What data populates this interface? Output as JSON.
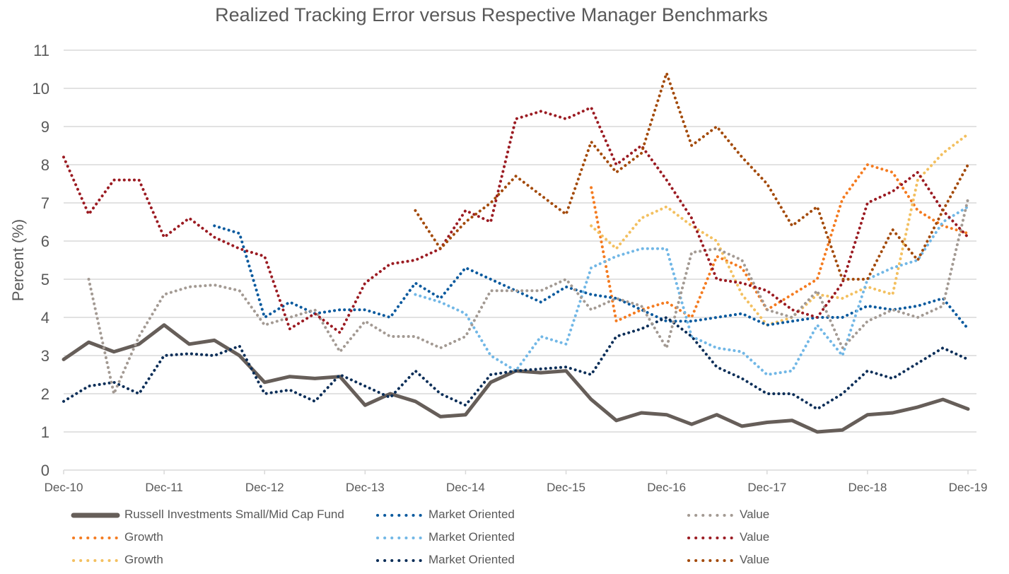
{
  "chart_data": {
    "type": "line",
    "title": "Realized Tracking Error versus Respective Manager Benchmarks",
    "xlabel": "",
    "ylabel": "Percent (%)",
    "ylim": [
      0,
      11
    ],
    "yticks": [
      0,
      1,
      2,
      3,
      4,
      5,
      6,
      7,
      8,
      9,
      10,
      11
    ],
    "x_tick_labels": [
      "Dec-10",
      "Dec-11",
      "Dec-12",
      "Dec-13",
      "Dec-14",
      "Dec-15",
      "Dec-16",
      "Dec-17",
      "Dec-18",
      "Dec-19"
    ],
    "x_resolution": "quarterly",
    "x": [
      "Dec-10",
      "Mar-11",
      "Jun-11",
      "Sep-11",
      "Dec-11",
      "Mar-12",
      "Jun-12",
      "Sep-12",
      "Dec-12",
      "Mar-13",
      "Jun-13",
      "Sep-13",
      "Dec-13",
      "Mar-14",
      "Jun-14",
      "Sep-14",
      "Dec-14",
      "Mar-15",
      "Jun-15",
      "Sep-15",
      "Dec-15",
      "Mar-16",
      "Jun-16",
      "Sep-16",
      "Dec-16",
      "Mar-17",
      "Jun-17",
      "Sep-17",
      "Dec-17",
      "Mar-18",
      "Jun-18",
      "Sep-18",
      "Dec-18",
      "Mar-19",
      "Jun-19",
      "Sep-19",
      "Dec-19"
    ],
    "grid": true,
    "legend_position": "bottom",
    "series": [
      {
        "name": "Russell Investments Small/Mid Cap Fund",
        "color": "#665e59",
        "style": "solid",
        "values": [
          2.9,
          3.35,
          3.1,
          3.3,
          3.8,
          3.3,
          3.4,
          3.0,
          2.3,
          2.45,
          2.4,
          2.45,
          1.7,
          2.0,
          1.8,
          1.4,
          1.45,
          2.3,
          2.6,
          2.55,
          2.6,
          1.85,
          1.3,
          1.5,
          1.45,
          1.2,
          1.45,
          1.15,
          1.25,
          1.3,
          1.0,
          1.05,
          1.45,
          1.5,
          1.65,
          1.85,
          1.6
        ]
      },
      {
        "name": "Growth",
        "color": "#f47b20",
        "style": "dotted",
        "values": [
          null,
          null,
          null,
          null,
          null,
          null,
          null,
          null,
          null,
          null,
          null,
          null,
          null,
          null,
          null,
          null,
          null,
          null,
          null,
          null,
          null,
          7.4,
          3.9,
          4.2,
          4.4,
          4.0,
          5.6,
          5.3,
          4.2,
          4.6,
          5.0,
          7.1,
          8.0,
          7.8,
          6.8,
          6.4,
          6.2
        ]
      },
      {
        "name": "Growth",
        "color": "#f3c060",
        "style": "dotted",
        "values": [
          null,
          null,
          null,
          null,
          null,
          null,
          null,
          null,
          null,
          null,
          null,
          null,
          null,
          null,
          null,
          null,
          null,
          null,
          null,
          null,
          null,
          6.4,
          5.8,
          6.6,
          6.9,
          6.4,
          6.0,
          4.6,
          3.8,
          4.0,
          4.6,
          4.5,
          4.8,
          4.6,
          7.6,
          8.3,
          8.8
        ]
      },
      {
        "name": "Market Oriented",
        "color": "#0a5a9e",
        "style": "dotted",
        "values": [
          null,
          null,
          null,
          null,
          null,
          null,
          6.4,
          6.2,
          4.0,
          4.4,
          4.1,
          4.2,
          4.2,
          4.0,
          4.9,
          4.5,
          5.3,
          5.0,
          4.7,
          4.4,
          4.8,
          4.6,
          4.5,
          4.2,
          3.9,
          3.9,
          4.0,
          4.1,
          3.8,
          3.9,
          4.0,
          4.0,
          4.3,
          4.2,
          4.3,
          4.5,
          3.7
        ]
      },
      {
        "name": "Market Oriented",
        "color": "#71b7e6",
        "style": "dotted",
        "values": [
          null,
          null,
          null,
          null,
          null,
          null,
          null,
          null,
          null,
          null,
          null,
          null,
          null,
          null,
          4.6,
          4.4,
          4.1,
          3.0,
          2.6,
          3.5,
          3.3,
          5.3,
          5.6,
          5.8,
          5.8,
          3.5,
          3.2,
          3.1,
          2.5,
          2.6,
          3.8,
          3.0,
          5.0,
          5.3,
          5.5,
          6.5,
          6.9
        ]
      },
      {
        "name": "Market Oriented",
        "color": "#0b2e58",
        "style": "dotted",
        "values": [
          1.8,
          2.2,
          2.3,
          2.0,
          3.0,
          3.05,
          3.0,
          3.25,
          2.0,
          2.1,
          1.8,
          2.5,
          2.2,
          1.9,
          2.6,
          2.0,
          1.7,
          2.5,
          2.6,
          2.65,
          2.7,
          2.5,
          3.5,
          3.7,
          4.0,
          3.5,
          2.7,
          2.4,
          2.0,
          2.0,
          1.6,
          2.0,
          2.6,
          2.4,
          2.8,
          3.2,
          2.9
        ]
      },
      {
        "name": "Value",
        "color": "#a39a93",
        "style": "dotted",
        "values": [
          null,
          5.0,
          2.0,
          3.5,
          4.6,
          4.8,
          4.85,
          4.7,
          3.8,
          4.0,
          4.2,
          3.1,
          3.9,
          3.5,
          3.5,
          3.2,
          3.5,
          4.7,
          4.7,
          4.7,
          5.0,
          4.2,
          4.5,
          4.3,
          3.2,
          5.7,
          5.8,
          5.5,
          4.2,
          4.0,
          4.7,
          3.2,
          3.9,
          4.2,
          4.0,
          4.3,
          7.1
        ]
      },
      {
        "name": "Value",
        "color": "#9b1b22",
        "style": "dotted",
        "values": [
          8.2,
          6.7,
          7.6,
          7.6,
          6.1,
          6.6,
          6.1,
          5.8,
          5.6,
          3.7,
          4.1,
          3.6,
          4.9,
          5.4,
          5.5,
          5.8,
          6.8,
          6.5,
          9.2,
          9.4,
          9.2,
          9.5,
          8.0,
          8.5,
          7.6,
          6.6,
          5.0,
          4.9,
          4.7,
          4.2,
          4.0,
          4.9,
          7.0,
          7.3,
          7.8,
          6.8,
          6.1
        ]
      },
      {
        "name": "Value",
        "color": "#a34a0a",
        "style": "dotted",
        "values": [
          null,
          null,
          null,
          null,
          null,
          null,
          null,
          null,
          null,
          null,
          null,
          null,
          null,
          null,
          6.8,
          5.8,
          6.5,
          7.0,
          7.7,
          7.2,
          6.7,
          8.6,
          7.8,
          8.3,
          10.4,
          8.5,
          9.0,
          8.2,
          7.5,
          6.4,
          6.9,
          5.0,
          5.0,
          6.3,
          5.5,
          6.8,
          8.0
        ]
      }
    ]
  }
}
